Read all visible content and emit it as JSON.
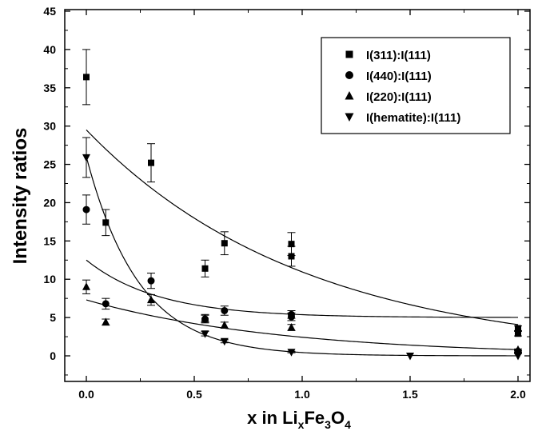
{
  "chart_data": {
    "type": "scatter",
    "xlabel": {
      "main": "x in Li",
      "sub1": "x",
      "mid1": "Fe",
      "sub2": "3",
      "mid2": "O",
      "sub3": "4"
    },
    "ylabel": "Intensity ratios",
    "xlim": [
      -0.1,
      2.1
    ],
    "ylim": [
      -3,
      45
    ],
    "xticks": [
      "0.0",
      "0.5",
      "1.0",
      "1.5",
      "2.0"
    ],
    "yticks": [
      "0",
      "5",
      "10",
      "15",
      "20",
      "25",
      "30",
      "35",
      "40",
      "45"
    ],
    "legend_position": "top-right",
    "series": [
      {
        "name": "I(311):I(111)",
        "marker": "square",
        "points": [
          {
            "x": 0.0,
            "y": 36.4,
            "err": 3.6
          },
          {
            "x": 0.09,
            "y": 17.4,
            "err": 1.7
          },
          {
            "x": 0.3,
            "y": 25.2,
            "err": 2.5
          },
          {
            "x": 0.55,
            "y": 11.4,
            "err": 1.1
          },
          {
            "x": 0.64,
            "y": 14.7,
            "err": 1.5
          },
          {
            "x": 0.95,
            "y": 14.6,
            "err": 1.5
          },
          {
            "x": 0.95,
            "y": 13.0,
            "err": 1.3
          },
          {
            "x": 2.0,
            "y": 3.6,
            "err": 0.3
          },
          {
            "x": 2.0,
            "y": 2.9,
            "err": 0.3
          }
        ],
        "fit": {
          "model": "exp",
          "a": 29.5,
          "k": 0.99,
          "c": 0
        }
      },
      {
        "name": "I(440):I(111)",
        "marker": "circle",
        "points": [
          {
            "x": 0.0,
            "y": 19.1,
            "err": 1.9
          },
          {
            "x": 0.09,
            "y": 6.8,
            "err": 0.7
          },
          {
            "x": 0.3,
            "y": 9.8,
            "err": 1.0
          },
          {
            "x": 0.55,
            "y": 4.8,
            "err": 0.5
          },
          {
            "x": 0.64,
            "y": 5.9,
            "err": 0.6
          },
          {
            "x": 0.95,
            "y": 5.1,
            "err": 0.5
          },
          {
            "x": 0.95,
            "y": 5.4,
            "err": 0.5
          },
          {
            "x": 2.0,
            "y": 0.6,
            "err": 0.1
          },
          {
            "x": 2.0,
            "y": 0.4,
            "err": 0.1
          }
        ],
        "fit": {
          "model": "exp",
          "a": 7.5,
          "k": 3.0,
          "c": 5.0
        }
      },
      {
        "name": "I(220):I(111)",
        "marker": "triangle-up",
        "points": [
          {
            "x": 0.0,
            "y": 9.0,
            "err": 0.9
          },
          {
            "x": 0.09,
            "y": 4.4,
            "err": 0.4
          },
          {
            "x": 0.3,
            "y": 7.3,
            "err": 0.7
          },
          {
            "x": 0.55,
            "y": 4.9,
            "err": 0.5
          },
          {
            "x": 0.64,
            "y": 4.0,
            "err": 0.4
          },
          {
            "x": 0.95,
            "y": 3.7,
            "err": 0.4
          },
          {
            "x": 2.0,
            "y": 0.8,
            "err": 0.1
          }
        ],
        "fit": {
          "model": "exp",
          "a": 7.3,
          "k": 1.1,
          "c": 0
        }
      },
      {
        "name": "I(hematite):I(111)",
        "marker": "triangle-down",
        "points": [
          {
            "x": 0.0,
            "y": 25.9,
            "err": 2.6
          },
          {
            "x": 0.55,
            "y": 2.9,
            "err": 0.3
          },
          {
            "x": 0.64,
            "y": 1.9,
            "err": 0.2
          },
          {
            "x": 0.95,
            "y": 0.5,
            "err": 0.1
          },
          {
            "x": 1.5,
            "y": 0.0,
            "err": 0
          },
          {
            "x": 2.0,
            "y": 0.0,
            "err": 0
          }
        ],
        "fit": {
          "model": "exp",
          "a": 26.0,
          "k": 4.1,
          "c": 0
        }
      }
    ]
  }
}
